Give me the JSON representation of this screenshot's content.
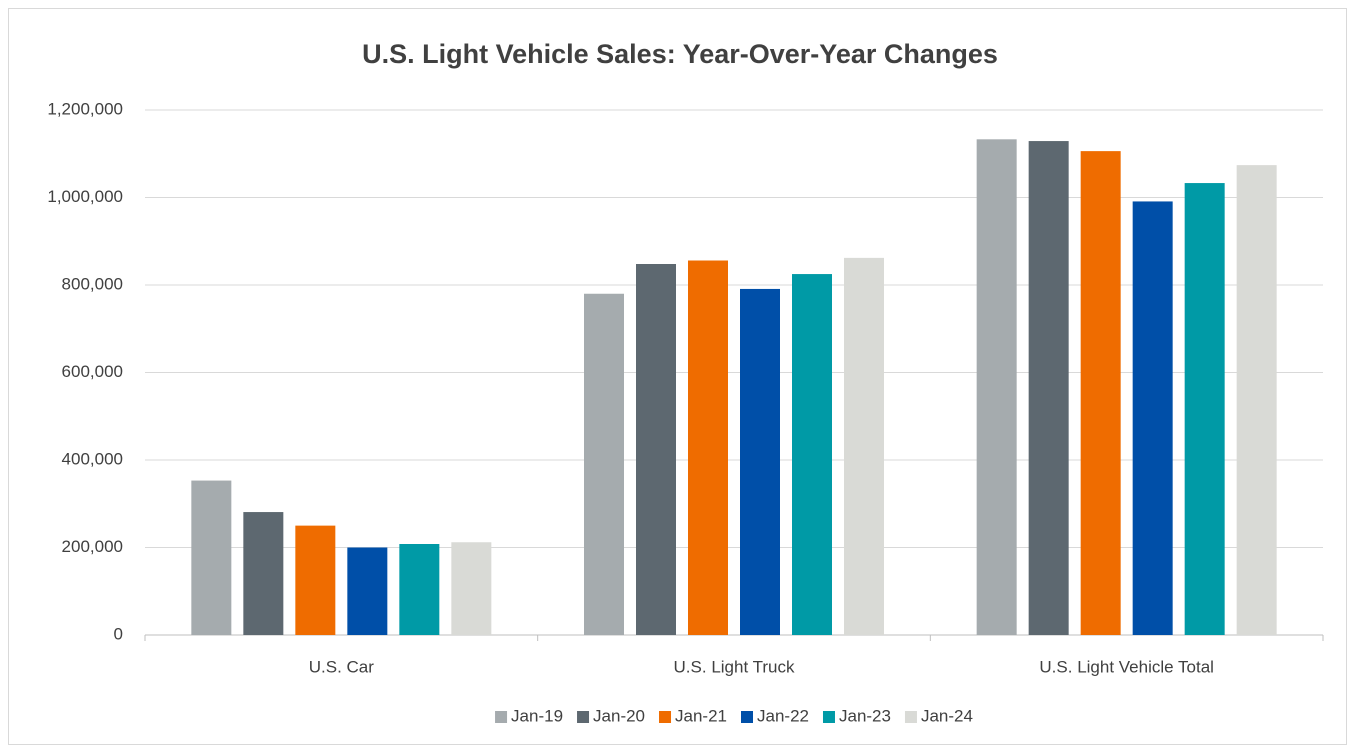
{
  "chart_data": {
    "type": "bar",
    "title": "U.S. Light Vehicle Sales: Year-Over-Year Changes",
    "categories": [
      "U.S. Car",
      "U.S. Light Truck",
      "U.S. Light Vehicle Total"
    ],
    "series": [
      {
        "name": "Jan-19",
        "color": "#a5abae",
        "values": [
          353000,
          780000,
          1133000
        ]
      },
      {
        "name": "Jan-20",
        "color": "#5d6870",
        "values": [
          281000,
          848000,
          1129000
        ]
      },
      {
        "name": "Jan-21",
        "color": "#ef6c00",
        "values": [
          250000,
          856000,
          1106000
        ]
      },
      {
        "name": "Jan-22",
        "color": "#004fa8",
        "values": [
          200000,
          791000,
          991000
        ]
      },
      {
        "name": "Jan-23",
        "color": "#009aa6",
        "values": [
          208000,
          825000,
          1033000
        ]
      },
      {
        "name": "Jan-24",
        "color": "#d9dad6",
        "values": [
          212000,
          862000,
          1074000
        ]
      }
    ],
    "ylim": [
      0,
      1200000
    ],
    "yticks": [
      0,
      {
        "value": 200000,
        "label": "200,000"
      },
      {
        "value": 400000,
        "label": "400,000"
      },
      {
        "value": 600000,
        "label": "600,000"
      },
      {
        "value": 800000,
        "label": "800,000"
      },
      {
        "value": 1000000,
        "label": "1,000,000"
      },
      {
        "value": 1200000,
        "label": "1,200,000"
      }
    ],
    "grid": true,
    "legend": "bottom"
  }
}
